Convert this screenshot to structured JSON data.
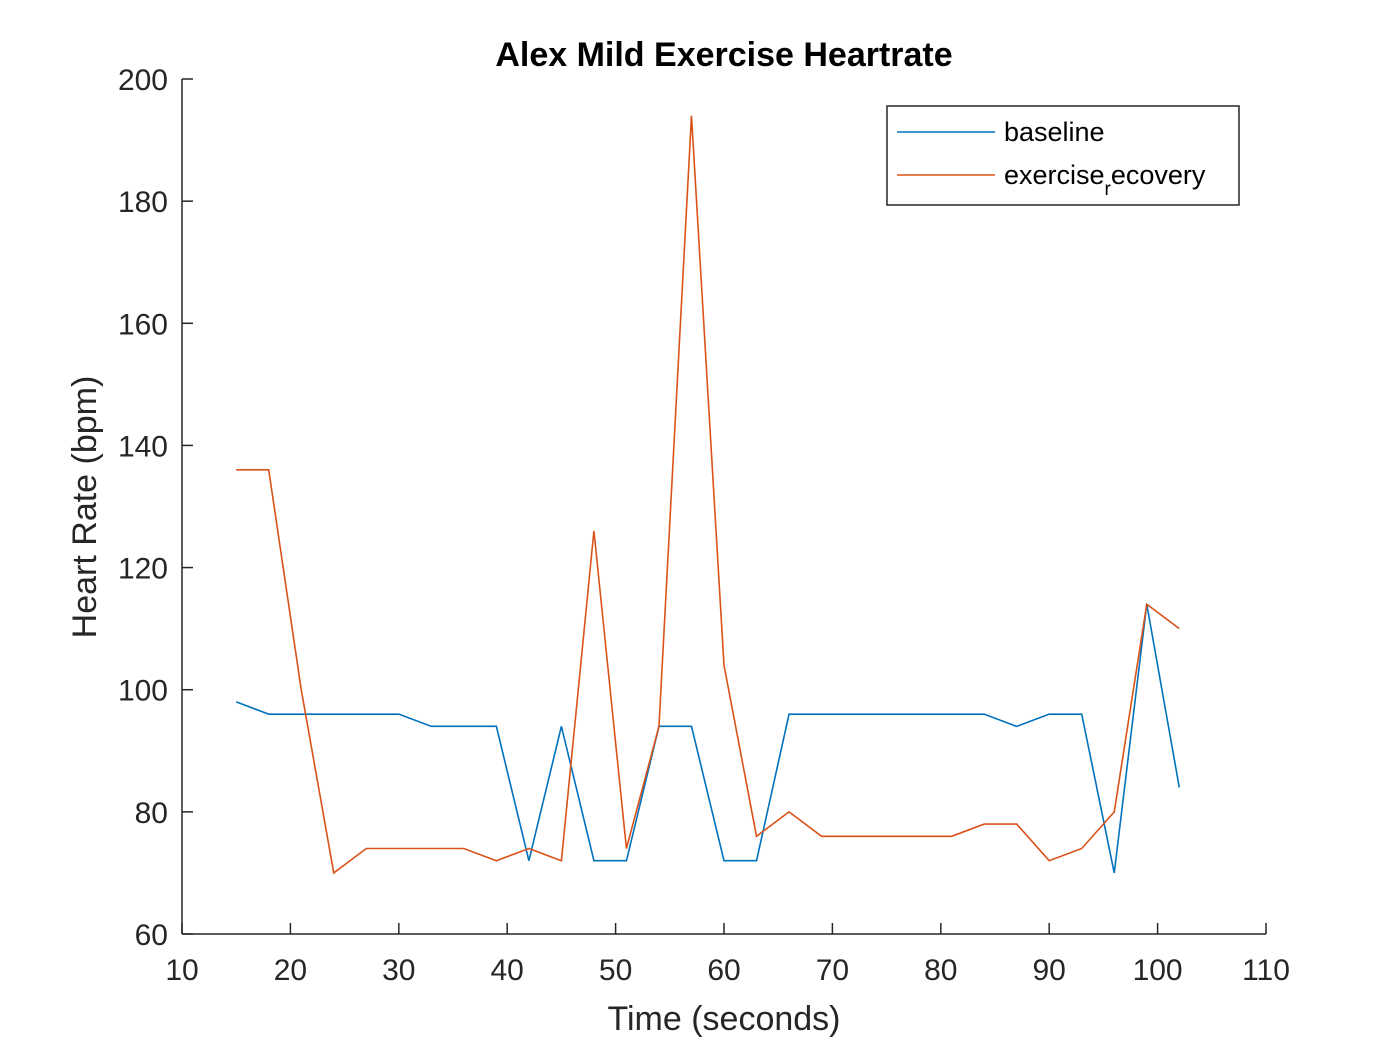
{
  "chart_data": {
    "type": "line",
    "title": "Alex Mild Exercise Heartrate",
    "xlabel": "Time (seconds)",
    "ylabel": "Heart Rate (bpm)",
    "xlim": [
      10,
      110
    ],
    "ylim": [
      60,
      200
    ],
    "xticks": [
      10,
      20,
      30,
      40,
      50,
      60,
      70,
      80,
      90,
      100,
      110
    ],
    "yticks": [
      60,
      80,
      100,
      120,
      140,
      160,
      180,
      200
    ],
    "grid": false,
    "legend_position": "top-right",
    "x": [
      15,
      18,
      21,
      24,
      27,
      30,
      33,
      36,
      39,
      42,
      45,
      48,
      51,
      54,
      57,
      60,
      63,
      66,
      69,
      72,
      75,
      78,
      81,
      84,
      87,
      90,
      93,
      96,
      99,
      102
    ],
    "series": [
      {
        "name": "baseline",
        "color": "#0072BD",
        "values": [
          98,
          96,
          96,
          96,
          96,
          96,
          94,
          94,
          94,
          72,
          94,
          72,
          72,
          94,
          94,
          72,
          72,
          96,
          96,
          96,
          96,
          96,
          96,
          96,
          94,
          96,
          96,
          70,
          114,
          84
        ]
      },
      {
        "name": "exercise_recovery",
        "legend_label_main": "exercise",
        "legend_label_sub": "r",
        "legend_label_rest": "ecovery",
        "color": "#D95319",
        "values": [
          136,
          136,
          100,
          70,
          74,
          74,
          74,
          74,
          72,
          74,
          72,
          126,
          74,
          94,
          194,
          104,
          76,
          80,
          76,
          76,
          76,
          76,
          76,
          78,
          78,
          72,
          74,
          80,
          114,
          110
        ]
      }
    ]
  }
}
